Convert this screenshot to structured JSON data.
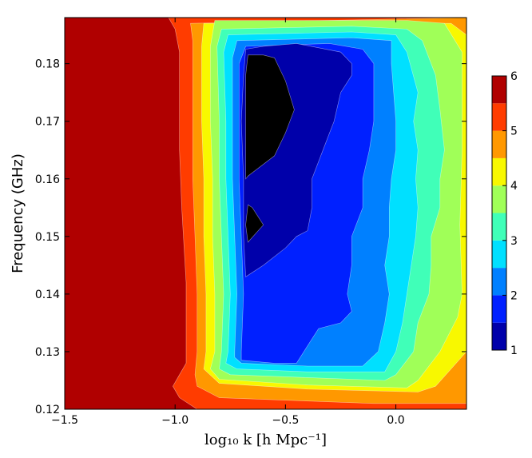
{
  "chart_data": {
    "type": "heatmap",
    "subtype": "filled-contour",
    "title": "",
    "xlabel": "log₁₀ k [h Mpc⁻¹]",
    "ylabel": "Frequency (GHz)",
    "xlim": [
      -1.5,
      0.32
    ],
    "ylim": [
      0.12,
      0.188
    ],
    "x_ticks": [
      -1.5,
      -1.0,
      -0.5,
      0.0
    ],
    "x_tick_labels": [
      "−1.5",
      "−1.0",
      "−0.5",
      "0.0"
    ],
    "y_ticks": [
      0.12,
      0.13,
      0.14,
      0.15,
      0.16,
      0.17,
      0.18
    ],
    "y_tick_labels": [
      "0.12",
      "0.13",
      "0.14",
      "0.15",
      "0.16",
      "0.17",
      "0.18"
    ],
    "colorbar": {
      "range": [
        1,
        6
      ],
      "levels": [
        1.0,
        1.5,
        2.0,
        2.5,
        3.0,
        3.5,
        4.0,
        4.5,
        5.0,
        5.5,
        6.0
      ],
      "tick_values": [
        1,
        2,
        3,
        4,
        5,
        6
      ],
      "tick_labels": [
        "1",
        "2",
        "3",
        "4",
        "5",
        "6"
      ],
      "colors": [
        "#0000aa",
        "#0020ff",
        "#0080ff",
        "#00e0ff",
        "#40ffb8",
        "#a0ff58",
        "#f8f800",
        "#ff9800",
        "#ff3c00",
        "#b00000"
      ]
    },
    "contours": [
      {
        "level": 5.5,
        "points": [
          [
            -1.03,
            0.188
          ],
          [
            -1.0,
            0.186
          ],
          [
            -0.98,
            0.182
          ],
          [
            -0.98,
            0.165
          ],
          [
            -0.97,
            0.155
          ],
          [
            -0.95,
            0.142
          ],
          [
            -0.95,
            0.132
          ],
          [
            -0.95,
            0.128
          ],
          [
            -0.98,
            0.126
          ],
          [
            -1.01,
            0.124
          ],
          [
            -0.98,
            0.122
          ],
          [
            -0.9,
            0.12
          ],
          [
            0.32,
            0.12
          ],
          [
            0.32,
            0.188
          ]
        ]
      },
      {
        "level": 5.0,
        "points": [
          [
            -0.93,
            0.187
          ],
          [
            -0.92,
            0.184
          ],
          [
            -0.92,
            0.17
          ],
          [
            -0.92,
            0.16
          ],
          [
            -0.91,
            0.15
          ],
          [
            -0.9,
            0.14
          ],
          [
            -0.9,
            0.13
          ],
          [
            -0.91,
            0.126
          ],
          [
            -0.9,
            0.124
          ],
          [
            -0.8,
            0.122
          ],
          [
            -0.1,
            0.121
          ],
          [
            0.32,
            0.121
          ],
          [
            0.32,
            0.188
          ]
        ]
      },
      {
        "level": 4.5,
        "points": [
          [
            -0.87,
            0.187
          ],
          [
            -0.88,
            0.183
          ],
          [
            -0.88,
            0.17
          ],
          [
            -0.87,
            0.16
          ],
          [
            -0.87,
            0.15
          ],
          [
            -0.86,
            0.14
          ],
          [
            -0.86,
            0.13
          ],
          [
            -0.87,
            0.127
          ],
          [
            -0.8,
            0.1245
          ],
          [
            -0.4,
            0.1235
          ],
          [
            0.1,
            0.123
          ],
          [
            0.18,
            0.124
          ],
          [
            0.32,
            0.13
          ],
          [
            0.32,
            0.185
          ],
          [
            0.25,
            0.187
          ]
        ]
      },
      {
        "level": 4.0,
        "points": [
          [
            -0.82,
            0.1875
          ],
          [
            -0.84,
            0.183
          ],
          [
            -0.84,
            0.17
          ],
          [
            -0.83,
            0.16
          ],
          [
            -0.83,
            0.15
          ],
          [
            -0.82,
            0.14
          ],
          [
            -0.82,
            0.13
          ],
          [
            -0.84,
            0.127
          ],
          [
            -0.8,
            0.1252
          ],
          [
            -0.4,
            0.1242
          ],
          [
            0.05,
            0.1237
          ],
          [
            0.1,
            0.125
          ],
          [
            0.2,
            0.13
          ],
          [
            0.28,
            0.136
          ],
          [
            0.3,
            0.14
          ],
          [
            0.29,
            0.152
          ],
          [
            0.3,
            0.165
          ],
          [
            0.3,
            0.175
          ],
          [
            0.3,
            0.182
          ],
          [
            0.22,
            0.187
          ],
          [
            0.05,
            0.1875
          ]
        ]
      },
      {
        "level": 3.5,
        "points": [
          [
            -0.79,
            0.186
          ],
          [
            -0.81,
            0.183
          ],
          [
            -0.8,
            0.17
          ],
          [
            -0.8,
            0.16
          ],
          [
            -0.79,
            0.15
          ],
          [
            -0.78,
            0.14
          ],
          [
            -0.79,
            0.13
          ],
          [
            -0.8,
            0.127
          ],
          [
            -0.75,
            0.126
          ],
          [
            -0.4,
            0.1255
          ],
          [
            -0.05,
            0.125
          ],
          [
            0.0,
            0.126
          ],
          [
            0.08,
            0.13
          ],
          [
            0.1,
            0.135
          ],
          [
            0.15,
            0.14
          ],
          [
            0.16,
            0.145
          ],
          [
            0.16,
            0.15
          ],
          [
            0.2,
            0.155
          ],
          [
            0.2,
            0.16
          ],
          [
            0.22,
            0.165
          ],
          [
            0.2,
            0.172
          ],
          [
            0.18,
            0.178
          ],
          [
            0.12,
            0.184
          ],
          [
            0.05,
            0.186
          ],
          [
            -0.2,
            0.1865
          ]
        ]
      },
      {
        "level": 3.0,
        "points": [
          [
            -0.76,
            0.185
          ],
          [
            -0.78,
            0.182
          ],
          [
            -0.77,
            0.17
          ],
          [
            -0.77,
            0.16
          ],
          [
            -0.76,
            0.15
          ],
          [
            -0.75,
            0.14
          ],
          [
            -0.76,
            0.13
          ],
          [
            -0.77,
            0.128
          ],
          [
            -0.72,
            0.127
          ],
          [
            -0.4,
            0.1265
          ],
          [
            -0.05,
            0.1265
          ],
          [
            0.0,
            0.13
          ],
          [
            0.03,
            0.135
          ],
          [
            0.05,
            0.14
          ],
          [
            0.07,
            0.145
          ],
          [
            0.09,
            0.15
          ],
          [
            0.1,
            0.155
          ],
          [
            0.09,
            0.16
          ],
          [
            0.1,
            0.165
          ],
          [
            0.08,
            0.17
          ],
          [
            0.1,
            0.175
          ],
          [
            0.05,
            0.182
          ],
          [
            0.0,
            0.185
          ],
          [
            -0.2,
            0.1855
          ]
        ]
      },
      {
        "level": 2.5,
        "points": [
          [
            -0.72,
            0.184
          ],
          [
            -0.74,
            0.181
          ],
          [
            -0.74,
            0.17
          ],
          [
            -0.74,
            0.16
          ],
          [
            -0.73,
            0.15
          ],
          [
            -0.72,
            0.14
          ],
          [
            -0.73,
            0.13
          ],
          [
            -0.73,
            0.129
          ],
          [
            -0.7,
            0.128
          ],
          [
            -0.4,
            0.1275
          ],
          [
            -0.15,
            0.1275
          ],
          [
            -0.08,
            0.13
          ],
          [
            -0.05,
            0.135
          ],
          [
            -0.03,
            0.14
          ],
          [
            -0.05,
            0.145
          ],
          [
            -0.03,
            0.15
          ],
          [
            -0.03,
            0.155
          ],
          [
            -0.02,
            0.16
          ],
          [
            0.0,
            0.165
          ],
          [
            0.0,
            0.17
          ],
          [
            -0.01,
            0.175
          ],
          [
            -0.02,
            0.18
          ],
          [
            -0.02,
            0.184
          ],
          [
            -0.2,
            0.1845
          ]
        ]
      },
      {
        "level": 2.0,
        "points": [
          [
            -0.68,
            0.183
          ],
          [
            -0.71,
            0.18
          ],
          [
            -0.71,
            0.17
          ],
          [
            -0.71,
            0.16
          ],
          [
            -0.7,
            0.15
          ],
          [
            -0.69,
            0.14
          ],
          [
            -0.7,
            0.13
          ],
          [
            -0.7,
            0.1285
          ],
          [
            -0.55,
            0.128
          ],
          [
            -0.45,
            0.128
          ],
          [
            -0.4,
            0.131
          ],
          [
            -0.35,
            0.134
          ],
          [
            -0.25,
            0.135
          ],
          [
            -0.2,
            0.137
          ],
          [
            -0.22,
            0.14
          ],
          [
            -0.2,
            0.145
          ],
          [
            -0.2,
            0.15
          ],
          [
            -0.15,
            0.155
          ],
          [
            -0.15,
            0.16
          ],
          [
            -0.12,
            0.165
          ],
          [
            -0.1,
            0.17
          ],
          [
            -0.1,
            0.175
          ],
          [
            -0.1,
            0.18
          ],
          [
            -0.15,
            0.1825
          ],
          [
            -0.3,
            0.1835
          ]
        ]
      },
      {
        "level": 1.5,
        "points": [
          [
            -0.68,
            0.1825
          ],
          [
            -0.69,
            0.178
          ],
          [
            -0.7,
            0.17
          ],
          [
            -0.69,
            0.16
          ],
          [
            -0.69,
            0.15
          ],
          [
            -0.68,
            0.143
          ],
          [
            -0.6,
            0.145
          ],
          [
            -0.5,
            0.148
          ],
          [
            -0.45,
            0.15
          ],
          [
            -0.4,
            0.151
          ],
          [
            -0.38,
            0.155
          ],
          [
            -0.38,
            0.16
          ],
          [
            -0.35,
            0.163
          ],
          [
            -0.3,
            0.168
          ],
          [
            -0.28,
            0.17
          ],
          [
            -0.25,
            0.175
          ],
          [
            -0.2,
            0.178
          ],
          [
            -0.2,
            0.18
          ],
          [
            -0.25,
            0.182
          ],
          [
            -0.45,
            0.1835
          ],
          [
            -0.6,
            0.183
          ]
        ]
      },
      {
        "level": 1.0,
        "points": [
          [
            -0.67,
            0.1815
          ],
          [
            -0.68,
            0.178
          ],
          [
            -0.68,
            0.17
          ],
          [
            -0.68,
            0.16
          ],
          [
            -0.67,
            0.1605
          ],
          [
            -0.55,
            0.164
          ],
          [
            -0.5,
            0.168
          ],
          [
            -0.46,
            0.172
          ],
          [
            -0.5,
            0.177
          ],
          [
            -0.55,
            0.181
          ],
          [
            -0.6,
            0.1815
          ]
        ]
      },
      {
        "level": 1.0,
        "points": [
          [
            -0.67,
            0.1555
          ],
          [
            -0.68,
            0.152
          ],
          [
            -0.67,
            0.149
          ],
          [
            -0.6,
            0.152
          ],
          [
            -0.65,
            0.155
          ]
        ]
      }
    ]
  }
}
